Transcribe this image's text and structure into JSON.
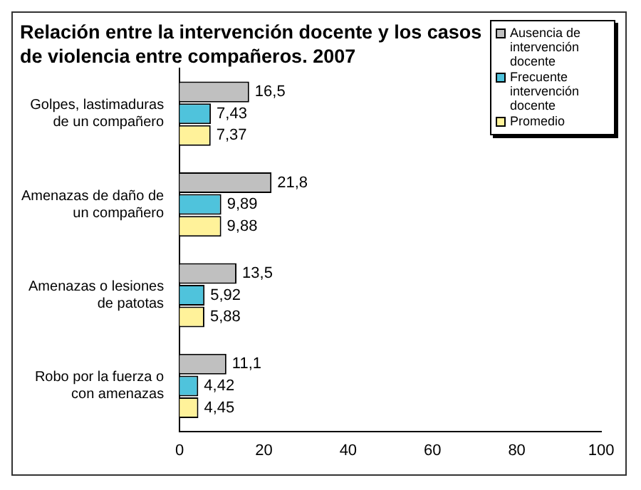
{
  "chart_data": {
    "type": "bar",
    "orientation": "horizontal",
    "title": "Relación entre la intervención docente y  los casos de violencia entre compañeros. 2007",
    "categories": [
      "Golpes, lastimaduras de un compañero",
      "Amenazas de daño de un compañero",
      "Amenazas o lesiones de patotas",
      "Robo por la fuerza o con amenazas"
    ],
    "series": [
      {
        "name": "Ausencia de intervención docente",
        "color": "#c0c0c0",
        "values": [
          16.5,
          21.8,
          13.5,
          11.1
        ],
        "value_labels": [
          "16,5",
          "21,8",
          "13,5",
          "11,1"
        ]
      },
      {
        "name": "Frecuente intervención docente",
        "color": "#4fc3dc",
        "values": [
          7.43,
          9.89,
          5.92,
          4.42
        ],
        "value_labels": [
          "7,43",
          "9,89",
          "5,92",
          "4,42"
        ]
      },
      {
        "name": "Promedio",
        "color": "#fff29a",
        "values": [
          7.37,
          9.88,
          5.88,
          4.45
        ],
        "value_labels": [
          "7,37",
          "9,88",
          "5,88",
          "4,45"
        ]
      }
    ],
    "xlim": [
      0,
      100
    ],
    "xticks": [
      0,
      20,
      40,
      60,
      80,
      100
    ],
    "grid": false,
    "legend": "top right"
  }
}
